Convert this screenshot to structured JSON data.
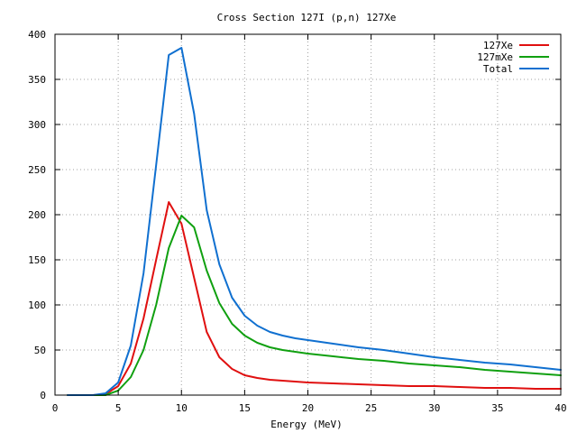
{
  "chart_data": {
    "type": "line",
    "title": "Cross Section 127I (p,n) 127Xe",
    "xlabel": "Energy (MeV)",
    "ylabel": "",
    "xlim": [
      0,
      40
    ],
    "ylim": [
      0,
      400
    ],
    "xticks": [
      0,
      5,
      10,
      15,
      20,
      25,
      30,
      35,
      40
    ],
    "yticks": [
      0,
      50,
      100,
      150,
      200,
      250,
      300,
      350,
      400
    ],
    "grid": true,
    "legend_position": "top-right",
    "series": [
      {
        "name": "127Xe",
        "color": "#e01010",
        "x": [
          1,
          2,
          3,
          4,
          5,
          6,
          7,
          8,
          9,
          10,
          11,
          12,
          13,
          14,
          15,
          16,
          17,
          18,
          19,
          20,
          22,
          24,
          26,
          28,
          30,
          32,
          34,
          36,
          38,
          40
        ],
        "y": [
          0,
          0,
          0,
          1,
          10,
          35,
          85,
          150,
          214,
          190,
          130,
          70,
          42,
          29,
          22,
          19,
          17,
          16,
          15,
          14,
          13,
          12,
          11,
          10,
          10,
          9,
          8,
          8,
          7,
          7
        ]
      },
      {
        "name": "127mXe",
        "color": "#10a010",
        "x": [
          1,
          2,
          3,
          4,
          5,
          6,
          7,
          8,
          9,
          10,
          11,
          12,
          13,
          14,
          15,
          16,
          17,
          18,
          19,
          20,
          22,
          24,
          26,
          28,
          30,
          32,
          34,
          36,
          38,
          40
        ],
        "y": [
          0,
          0,
          0,
          0,
          5,
          20,
          50,
          100,
          163,
          199,
          186,
          138,
          102,
          79,
          66,
          58,
          53,
          50,
          48,
          46,
          43,
          40,
          38,
          35,
          33,
          31,
          28,
          26,
          24,
          22
        ]
      },
      {
        "name": "Total",
        "color": "#1070d0",
        "x": [
          1,
          2,
          3,
          4,
          5,
          6,
          7,
          8,
          9,
          10,
          11,
          12,
          13,
          14,
          15,
          16,
          17,
          18,
          19,
          20,
          22,
          24,
          26,
          28,
          30,
          32,
          34,
          36,
          38,
          40
        ],
        "y": [
          0,
          0,
          0,
          2,
          14,
          55,
          135,
          255,
          377,
          385,
          312,
          205,
          145,
          108,
          88,
          77,
          70,
          66,
          63,
          61,
          57,
          53,
          50,
          46,
          42,
          39,
          36,
          34,
          31,
          28
        ]
      }
    ]
  }
}
